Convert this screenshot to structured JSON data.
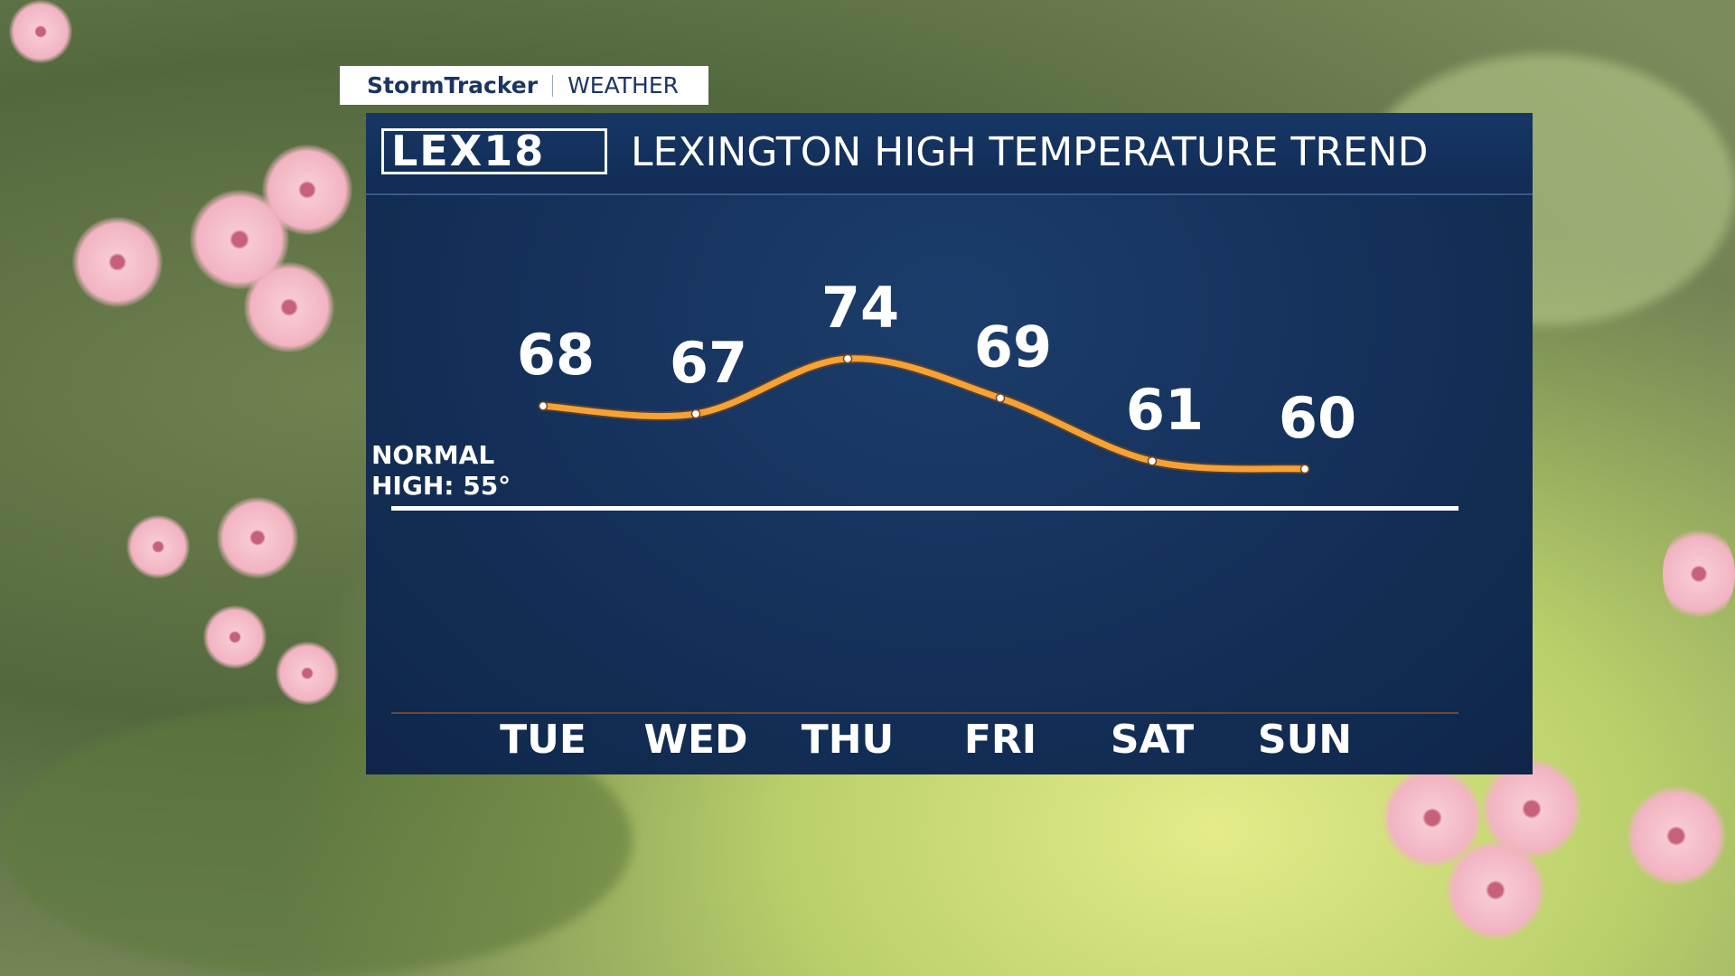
{
  "brand": {
    "name": "StormTracker",
    "section": "WEATHER",
    "logo": "LEX18"
  },
  "chart_data": {
    "type": "line",
    "title": "LEXINGTON HIGH TEMPERATURE TREND",
    "categories": [
      "TUE",
      "WED",
      "THU",
      "FRI",
      "SAT",
      "SUN"
    ],
    "values": [
      68,
      67,
      74,
      69,
      61,
      60
    ],
    "color": "#f6a234",
    "ylim": [
      29,
      95
    ],
    "reference": {
      "value": 55,
      "label": "NORMAL HIGH: 55°"
    }
  }
}
